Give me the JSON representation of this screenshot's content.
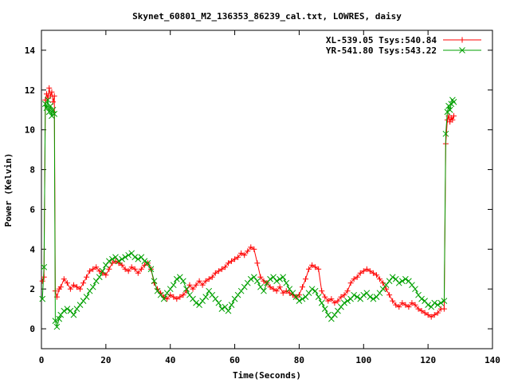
{
  "chart_data": {
    "type": "scatter",
    "title": "Skynet_60801_M2_136353_86239_cal.txt, LOWRES, daisy",
    "xlabel": "Time(Seconds)",
    "ylabel": "Power (Kelvin)",
    "xlim": [
      0,
      140
    ],
    "ylim": [
      -1,
      15
    ],
    "xticks": [
      0,
      20,
      40,
      60,
      80,
      100,
      120,
      140
    ],
    "yticks": [
      0,
      2,
      4,
      6,
      8,
      10,
      12,
      14
    ],
    "grid": false,
    "legend_position": "top-right",
    "series": [
      {
        "name": "XL-539.05 Tsys:540.84",
        "color": "#ff0000",
        "marker": "plus",
        "points": [
          [
            0.3,
            2.4
          ],
          [
            0.8,
            2.6
          ],
          [
            1.2,
            11.5
          ],
          [
            1.6,
            11.8
          ],
          [
            2.0,
            11.6
          ],
          [
            2.4,
            12.1
          ],
          [
            2.8,
            11.7
          ],
          [
            3.2,
            11.9
          ],
          [
            3.6,
            11.4
          ],
          [
            4.0,
            11.7
          ],
          [
            4.3,
            1.9
          ],
          [
            4.8,
            1.6
          ],
          [
            5.5,
            2.0
          ],
          [
            6,
            2.1
          ],
          [
            7,
            2.5
          ],
          [
            8,
            2.3
          ],
          [
            9,
            2.0
          ],
          [
            10,
            2.2
          ],
          [
            11,
            2.1
          ],
          [
            12,
            2.0
          ],
          [
            13,
            2.3
          ],
          [
            14,
            2.6
          ],
          [
            15,
            2.9
          ],
          [
            16,
            3.0
          ],
          [
            17,
            3.1
          ],
          [
            18,
            2.9
          ],
          [
            19,
            2.8
          ],
          [
            20,
            2.7
          ],
          [
            21,
            3.0
          ],
          [
            22,
            3.3
          ],
          [
            23,
            3.4
          ],
          [
            24,
            3.3
          ],
          [
            25,
            3.2
          ],
          [
            26,
            3.0
          ],
          [
            27,
            2.9
          ],
          [
            28,
            3.1
          ],
          [
            29,
            3.0
          ],
          [
            30,
            2.8
          ],
          [
            31,
            3.0
          ],
          [
            32,
            3.2
          ],
          [
            33,
            3.3
          ],
          [
            34,
            3.0
          ],
          [
            35,
            2.3
          ],
          [
            36,
            2.0
          ],
          [
            37,
            1.8
          ],
          [
            38,
            1.6
          ],
          [
            39,
            1.5
          ],
          [
            40,
            1.7
          ],
          [
            41,
            1.6
          ],
          [
            42,
            1.5
          ],
          [
            43,
            1.6
          ],
          [
            44,
            1.7
          ],
          [
            45,
            1.9
          ],
          [
            46,
            2.2
          ],
          [
            47,
            2.0
          ],
          [
            48,
            2.2
          ],
          [
            49,
            2.4
          ],
          [
            50,
            2.2
          ],
          [
            51,
            2.4
          ],
          [
            52,
            2.5
          ],
          [
            53,
            2.6
          ],
          [
            54,
            2.8
          ],
          [
            55,
            2.9
          ],
          [
            56,
            3.0
          ],
          [
            57,
            3.1
          ],
          [
            58,
            3.3
          ],
          [
            59,
            3.4
          ],
          [
            60,
            3.5
          ],
          [
            61,
            3.6
          ],
          [
            62,
            3.8
          ],
          [
            63,
            3.7
          ],
          [
            64,
            3.9
          ],
          [
            65,
            4.1
          ],
          [
            66,
            4.0
          ],
          [
            67,
            3.3
          ],
          [
            68,
            2.6
          ],
          [
            69,
            2.4
          ],
          [
            70,
            2.3
          ],
          [
            71,
            2.1
          ],
          [
            72,
            2.0
          ],
          [
            73,
            1.9
          ],
          [
            74,
            2.1
          ],
          [
            75,
            1.8
          ],
          [
            76,
            1.9
          ],
          [
            77,
            1.8
          ],
          [
            78,
            1.7
          ],
          [
            79,
            1.6
          ],
          [
            80,
            1.7
          ],
          [
            81,
            2.1
          ],
          [
            82,
            2.5
          ],
          [
            83,
            3.0
          ],
          [
            84,
            3.2
          ],
          [
            85,
            3.1
          ],
          [
            86,
            3.0
          ],
          [
            87,
            1.9
          ],
          [
            88,
            1.6
          ],
          [
            89,
            1.4
          ],
          [
            90,
            1.5
          ],
          [
            91,
            1.3
          ],
          [
            92,
            1.4
          ],
          [
            93,
            1.6
          ],
          [
            94,
            1.7
          ],
          [
            95,
            1.9
          ],
          [
            96,
            2.3
          ],
          [
            97,
            2.5
          ],
          [
            98,
            2.6
          ],
          [
            99,
            2.8
          ],
          [
            100,
            2.9
          ],
          [
            101,
            3.0
          ],
          [
            102,
            2.9
          ],
          [
            103,
            2.8
          ],
          [
            104,
            2.7
          ],
          [
            105,
            2.5
          ],
          [
            106,
            2.3
          ],
          [
            107,
            2.0
          ],
          [
            108,
            1.7
          ],
          [
            109,
            1.4
          ],
          [
            110,
            1.2
          ],
          [
            111,
            1.1
          ],
          [
            112,
            1.3
          ],
          [
            113,
            1.2
          ],
          [
            114,
            1.1
          ],
          [
            115,
            1.3
          ],
          [
            116,
            1.2
          ],
          [
            117,
            1.0
          ],
          [
            118,
            0.9
          ],
          [
            119,
            0.8
          ],
          [
            120,
            0.7
          ],
          [
            121,
            0.6
          ],
          [
            122,
            0.7
          ],
          [
            123,
            0.8
          ],
          [
            124,
            1.0
          ],
          [
            125,
            1.0
          ],
          [
            125.5,
            9.3
          ],
          [
            126,
            10.5
          ],
          [
            126.4,
            10.7
          ],
          [
            126.8,
            10.4
          ],
          [
            127.2,
            10.6
          ],
          [
            127.6,
            10.5
          ],
          [
            128,
            10.7
          ]
        ]
      },
      {
        "name": "YR-541.80 Tsys:543.22",
        "color": "#00a000",
        "marker": "cross",
        "points": [
          [
            0.3,
            1.5
          ],
          [
            0.8,
            3.1
          ],
          [
            1.2,
            11.3
          ],
          [
            1.6,
            11.1
          ],
          [
            2.0,
            11.5
          ],
          [
            2.4,
            10.9
          ],
          [
            2.8,
            11.2
          ],
          [
            3.2,
            10.7
          ],
          [
            3.6,
            11.0
          ],
          [
            4.0,
            10.8
          ],
          [
            4.3,
            0.4
          ],
          [
            4.8,
            0.1
          ],
          [
            5.5,
            0.5
          ],
          [
            6,
            0.7
          ],
          [
            7,
            0.9
          ],
          [
            8,
            1.0
          ],
          [
            9,
            0.9
          ],
          [
            10,
            0.7
          ],
          [
            11,
            1.0
          ],
          [
            12,
            1.2
          ],
          [
            13,
            1.4
          ],
          [
            14,
            1.6
          ],
          [
            15,
            1.9
          ],
          [
            16,
            2.1
          ],
          [
            17,
            2.4
          ],
          [
            18,
            2.6
          ],
          [
            19,
            2.9
          ],
          [
            20,
            3.2
          ],
          [
            21,
            3.4
          ],
          [
            22,
            3.5
          ],
          [
            23,
            3.6
          ],
          [
            24,
            3.4
          ],
          [
            25,
            3.5
          ],
          [
            26,
            3.6
          ],
          [
            27,
            3.7
          ],
          [
            28,
            3.8
          ],
          [
            29,
            3.6
          ],
          [
            30,
            3.5
          ],
          [
            31,
            3.6
          ],
          [
            32,
            3.4
          ],
          [
            33,
            3.3
          ],
          [
            34,
            3.0
          ],
          [
            35,
            2.4
          ],
          [
            36,
            1.9
          ],
          [
            37,
            1.7
          ],
          [
            38,
            1.5
          ],
          [
            39,
            1.8
          ],
          [
            40,
            2.0
          ],
          [
            41,
            2.2
          ],
          [
            42,
            2.5
          ],
          [
            43,
            2.6
          ],
          [
            44,
            2.4
          ],
          [
            45,
            2.0
          ],
          [
            46,
            1.7
          ],
          [
            47,
            1.5
          ],
          [
            48,
            1.3
          ],
          [
            49,
            1.2
          ],
          [
            50,
            1.4
          ],
          [
            51,
            1.6
          ],
          [
            52,
            1.9
          ],
          [
            53,
            1.7
          ],
          [
            54,
            1.5
          ],
          [
            55,
            1.3
          ],
          [
            56,
            1.0
          ],
          [
            57,
            1.1
          ],
          [
            58,
            0.9
          ],
          [
            59,
            1.2
          ],
          [
            60,
            1.5
          ],
          [
            61,
            1.7
          ],
          [
            62,
            1.9
          ],
          [
            63,
            2.1
          ],
          [
            64,
            2.3
          ],
          [
            65,
            2.5
          ],
          [
            66,
            2.6
          ],
          [
            67,
            2.4
          ],
          [
            68,
            2.1
          ],
          [
            69,
            1.9
          ],
          [
            70,
            2.3
          ],
          [
            71,
            2.5
          ],
          [
            72,
            2.6
          ],
          [
            73,
            2.4
          ],
          [
            74,
            2.5
          ],
          [
            75,
            2.6
          ],
          [
            76,
            2.3
          ],
          [
            77,
            2.0
          ],
          [
            78,
            1.8
          ],
          [
            79,
            1.6
          ],
          [
            80,
            1.4
          ],
          [
            81,
            1.5
          ],
          [
            82,
            1.6
          ],
          [
            83,
            1.8
          ],
          [
            84,
            2.0
          ],
          [
            85,
            1.9
          ],
          [
            86,
            1.6
          ],
          [
            87,
            1.3
          ],
          [
            88,
            1.0
          ],
          [
            89,
            0.7
          ],
          [
            90,
            0.5
          ],
          [
            91,
            0.7
          ],
          [
            92,
            0.9
          ],
          [
            93,
            1.1
          ],
          [
            94,
            1.3
          ],
          [
            95,
            1.4
          ],
          [
            96,
            1.5
          ],
          [
            97,
            1.7
          ],
          [
            98,
            1.6
          ],
          [
            99,
            1.5
          ],
          [
            100,
            1.7
          ],
          [
            101,
            1.8
          ],
          [
            102,
            1.6
          ],
          [
            103,
            1.5
          ],
          [
            104,
            1.6
          ],
          [
            105,
            1.8
          ],
          [
            106,
            2.0
          ],
          [
            107,
            2.2
          ],
          [
            108,
            2.4
          ],
          [
            109,
            2.6
          ],
          [
            110,
            2.5
          ],
          [
            111,
            2.3
          ],
          [
            112,
            2.4
          ],
          [
            113,
            2.5
          ],
          [
            114,
            2.4
          ],
          [
            115,
            2.2
          ],
          [
            116,
            2.0
          ],
          [
            117,
            1.7
          ],
          [
            118,
            1.5
          ],
          [
            119,
            1.4
          ],
          [
            120,
            1.2
          ],
          [
            121,
            1.1
          ],
          [
            122,
            1.3
          ],
          [
            123,
            1.2
          ],
          [
            124,
            1.3
          ],
          [
            125,
            1.4
          ],
          [
            125.5,
            9.8
          ],
          [
            126,
            10.9
          ],
          [
            126.4,
            11.2
          ],
          [
            126.8,
            11.0
          ],
          [
            127.2,
            11.3
          ],
          [
            127.6,
            11.5
          ],
          [
            128,
            11.4
          ]
        ]
      }
    ]
  }
}
